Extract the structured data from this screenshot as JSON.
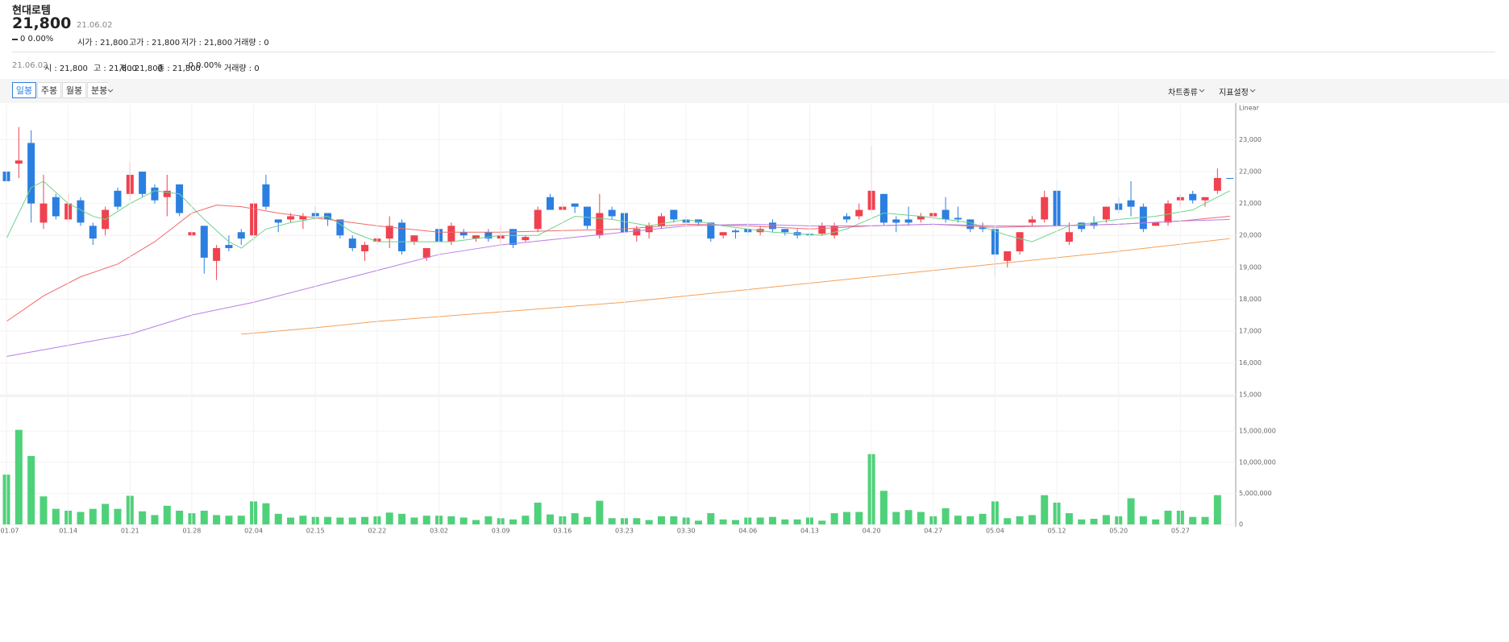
{
  "header": {
    "name": "현대로템",
    "price": "21,800",
    "date": "21.06.02",
    "change": "0 0.00%",
    "fields": [
      "시가 : 21,800",
      "고가 : 21,800",
      "저가 : 21,800",
      "거래량 : 0"
    ]
  },
  "info_bar": {
    "date": "21.06.02",
    "fields": [
      "시 : 21,800",
      "고 : 21,800",
      "저 : 21,800",
      "종 : 21,800",
      "-0 0.00%",
      "거래량 : 0"
    ]
  },
  "toolbar": {
    "tabs": [
      "일봉",
      "주봉",
      "월봉",
      "분봉"
    ],
    "selected": 0,
    "right": [
      "차트종류",
      "지표설정"
    ]
  },
  "chart_data": [
    {
      "type": "candlestick",
      "scale_label": "Linear",
      "up_color": "#f0414f",
      "down_color": "#2b7fe0",
      "candles": {
        "open": [
          22000,
          22250,
          22900,
          20400,
          21200,
          20500,
          21100,
          20300,
          20200,
          21400,
          21300,
          22000,
          21500,
          21200,
          21600,
          20000,
          20300,
          19200,
          19700,
          20100,
          20000,
          21600,
          20500,
          20500,
          20500,
          20700,
          20700,
          20500,
          19900,
          19500,
          19800,
          19900,
          20400,
          19800,
          19300,
          20200,
          19800,
          20100,
          19900,
          20100,
          19900,
          20200,
          19850,
          20200,
          21200,
          20800,
          21000,
          20900,
          20000,
          20800,
          20700,
          20000,
          20100,
          20300,
          20800,
          20500,
          20500,
          20400,
          20000,
          20150,
          20200,
          20100,
          20400,
          20200,
          20100,
          20050,
          20050,
          20000,
          20600,
          20600,
          20800,
          21300,
          20500,
          20500,
          20500,
          20600,
          20800,
          20550,
          20500,
          20250,
          20200,
          19200,
          19500,
          20400,
          20500,
          21400,
          19800,
          20400,
          20400,
          20500,
          21000,
          21100,
          20900,
          20300,
          20400,
          21100,
          21300,
          21100,
          21400,
          21800
        ],
        "high": [
          22500,
          23400,
          23300,
          21900,
          21300,
          21300,
          21200,
          20400,
          20900,
          21500,
          22300,
          22000,
          21600,
          21900,
          21600,
          20100,
          20300,
          19700,
          20000,
          20200,
          21100,
          21900,
          20500,
          20700,
          20700,
          20900,
          20700,
          20500,
          20000,
          19800,
          20000,
          20600,
          20500,
          20000,
          19600,
          20400,
          20400,
          20200,
          20000,
          20200,
          20300,
          20200,
          20000,
          20900,
          21300,
          21000,
          21000,
          20900,
          21300,
          20900,
          20700,
          20300,
          20400,
          20700,
          20800,
          20600,
          20500,
          20400,
          20100,
          20200,
          20300,
          20300,
          20500,
          20200,
          20200,
          20100,
          20400,
          20400,
          20700,
          21000,
          22800,
          21300,
          20600,
          20900,
          20700,
          20700,
          21200,
          20900,
          20500,
          20400,
          20300,
          19500,
          20100,
          20600,
          21400,
          21700,
          20400,
          20400,
          20600,
          20900,
          21200,
          21700,
          21000,
          20400,
          21100,
          21300,
          21400,
          21200,
          22100,
          21800
        ],
        "low": [
          21500,
          21800,
          20400,
          20200,
          20500,
          20400,
          20300,
          19700,
          20000,
          20800,
          21100,
          21200,
          21000,
          20600,
          20600,
          19900,
          18800,
          18600,
          19500,
          19700,
          19800,
          20800,
          20100,
          20400,
          20200,
          20500,
          20300,
          19900,
          19500,
          19200,
          19700,
          19600,
          19400,
          19700,
          19200,
          19700,
          19700,
          19900,
          19800,
          19800,
          19700,
          19600,
          19800,
          20100,
          20800,
          20800,
          20700,
          20200,
          19900,
          20500,
          20000,
          19800,
          19900,
          20200,
          20400,
          20300,
          20300,
          19800,
          19900,
          19900,
          20000,
          20000,
          20100,
          20000,
          19900,
          19900,
          20000,
          19900,
          20400,
          20500,
          20700,
          20300,
          20100,
          20300,
          20400,
          20500,
          20400,
          20400,
          20100,
          20100,
          18700,
          19000,
          19400,
          20300,
          20400,
          20300,
          19700,
          20100,
          20200,
          20400,
          20700,
          20600,
          20100,
          20300,
          20300,
          20900,
          21000,
          20900,
          21300,
          21800
        ],
        "close": [
          21700,
          22350,
          21000,
          21000,
          20600,
          21000,
          20400,
          19900,
          20800,
          20900,
          21900,
          21300,
          21100,
          21400,
          20700,
          20100,
          19300,
          19600,
          19600,
          19900,
          21000,
          20900,
          20400,
          20600,
          20600,
          20600,
          20500,
          20000,
          19600,
          19700,
          19900,
          20300,
          19500,
          20000,
          19600,
          19800,
          20300,
          20000,
          20000,
          19900,
          20000,
          19700,
          19950,
          20800,
          20800,
          20900,
          20900,
          20300,
          20700,
          20600,
          20100,
          20200,
          20300,
          20600,
          20500,
          20400,
          20400,
          19900,
          20100,
          20100,
          20100,
          20200,
          20200,
          20100,
          20000,
          20000,
          20300,
          20300,
          20500,
          20800,
          21400,
          20400,
          20400,
          20400,
          20600,
          20700,
          20500,
          20500,
          20200,
          20200,
          19400,
          19500,
          20100,
          20500,
          21200,
          20300,
          20100,
          20200,
          20300,
          20900,
          20800,
          20900,
          20200,
          20400,
          21000,
          21200,
          21100,
          21200,
          21800,
          21800
        ]
      },
      "series": [
        {
          "color": "#6fd38b",
          "x": [
            0,
            2,
            3,
            5,
            7,
            8,
            10,
            12,
            14,
            16,
            18,
            19,
            21,
            23,
            26,
            28,
            30,
            33,
            36,
            40,
            43,
            46,
            49,
            52,
            55,
            58,
            62,
            66,
            68,
            71,
            74,
            78,
            81,
            83,
            86,
            90,
            93,
            96,
            99
          ],
          "values": [
            19900,
            21500,
            21700,
            21000,
            20600,
            20500,
            21000,
            21400,
            21300,
            20500,
            19800,
            19600,
            20200,
            20400,
            20600,
            20100,
            19800,
            19800,
            19800,
            20000,
            20000,
            20600,
            20500,
            20300,
            20500,
            20300,
            20100,
            20000,
            20200,
            20700,
            20600,
            20400,
            20000,
            19800,
            20300,
            20500,
            20600,
            20800,
            21400
          ]
        },
        {
          "color": "#f06a6a",
          "x": [
            0,
            3,
            6,
            9,
            12,
            15,
            17,
            19,
            22,
            26,
            30,
            35,
            40,
            45,
            50,
            55,
            60,
            65,
            70,
            75,
            80,
            85,
            90,
            95,
            99
          ],
          "values": [
            17300,
            18100,
            18700,
            19100,
            19800,
            20700,
            20950,
            20900,
            20700,
            20500,
            20300,
            20100,
            20100,
            20150,
            20200,
            20350,
            20300,
            20200,
            20300,
            20350,
            20250,
            20300,
            20350,
            20450,
            20600
          ]
        },
        {
          "color": "#b87ee8",
          "x": [
            0,
            10,
            15,
            20,
            25,
            30,
            35,
            40,
            45,
            50,
            55,
            60,
            65,
            70,
            75,
            80,
            85,
            90,
            95,
            99
          ],
          "values": [
            16200,
            16900,
            17500,
            17900,
            18400,
            18900,
            19400,
            19700,
            19900,
            20100,
            20300,
            20350,
            20300,
            20300,
            20350,
            20300,
            20300,
            20350,
            20450,
            20500
          ]
        },
        {
          "color": "#f5a05a",
          "x": [
            19,
            25,
            30,
            40,
            50,
            60,
            70,
            80,
            90,
            99
          ],
          "values": [
            16900,
            17100,
            17300,
            17600,
            17900,
            18300,
            18700,
            19100,
            19500,
            19900
          ]
        }
      ],
      "ylim": [
        15000,
        24100
      ],
      "yticks": [
        {
          "value": 15000,
          "label": "15,000"
        },
        {
          "value": 16000,
          "label": "16,000"
        },
        {
          "value": 17000,
          "label": "17,000"
        },
        {
          "value": 18000,
          "label": "18,000"
        },
        {
          "value": 19000,
          "label": "19,000"
        },
        {
          "value": 20000,
          "label": "20,000"
        },
        {
          "value": 21000,
          "label": "21,000"
        },
        {
          "value": 22000,
          "label": "22,000"
        },
        {
          "value": 23000,
          "label": "23,000"
        }
      ],
      "grid": true
    },
    {
      "type": "bar",
      "color": "#4fd17a",
      "categories": [
        "01.07",
        null,
        null,
        null,
        null,
        "01.14",
        null,
        null,
        null,
        null,
        "01.21",
        null,
        null,
        null,
        null,
        "01.28",
        null,
        null,
        null,
        null,
        "02.04",
        null,
        null,
        null,
        null,
        "02.15",
        null,
        null,
        null,
        null,
        "02.22",
        null,
        null,
        null,
        null,
        "03.02",
        null,
        null,
        null,
        null,
        "03.09",
        null,
        null,
        null,
        null,
        "03.16",
        null,
        null,
        null,
        null,
        "03.23",
        null,
        null,
        null,
        null,
        "03.30",
        null,
        null,
        null,
        null,
        "04.06",
        null,
        null,
        null,
        null,
        "04.13",
        null,
        null,
        null,
        null,
        "04.20",
        null,
        null,
        null,
        null,
        "04.27",
        null,
        null,
        null,
        null,
        "05.04",
        null,
        null,
        null,
        null,
        "05.12",
        null,
        null,
        null,
        null,
        "05.20",
        null,
        null,
        null,
        null,
        "05.27",
        null,
        null,
        null,
        null
      ],
      "values": [
        8000000,
        15200000,
        11000000,
        4500000,
        2500000,
        2200000,
        2000000,
        2500000,
        3300000,
        2500000,
        4600000,
        2100000,
        1500000,
        3000000,
        2200000,
        1800000,
        2200000,
        1500000,
        1400000,
        1400000,
        3700000,
        3400000,
        1700000,
        1100000,
        1400000,
        1200000,
        1200000,
        1100000,
        1100000,
        1200000,
        1300000,
        1900000,
        1700000,
        1100000,
        1400000,
        1400000,
        1300000,
        1100000,
        700000,
        1300000,
        1000000,
        800000,
        1400000,
        3500000,
        1600000,
        1300000,
        1800000,
        1200000,
        3800000,
        1000000,
        1000000,
        1000000,
        700000,
        1300000,
        1300000,
        1100000,
        600000,
        1800000,
        800000,
        700000,
        1100000,
        1100000,
        1200000,
        800000,
        800000,
        1100000,
        600000,
        1800000,
        2000000,
        2000000,
        11300000,
        5400000,
        2000000,
        2300000,
        2000000,
        1300000,
        2600000,
        1400000,
        1300000,
        1700000,
        3700000,
        1000000,
        1300000,
        1500000,
        4700000,
        3500000,
        1800000,
        800000,
        900000,
        1500000,
        1300000,
        4200000,
        1300000,
        800000,
        2200000,
        2200000,
        1200000,
        1200000,
        4700000,
        0
      ],
      "ylim": [
        0,
        20200000
      ],
      "yticks": [
        0,
        {
          "value": 5000000,
          "label": "5,000,000"
        },
        {
          "value": 10000000,
          "label": "10,000,000"
        },
        {
          "value": 15000000,
          "label": "15,000,000"
        }
      ],
      "grid": true
    }
  ]
}
